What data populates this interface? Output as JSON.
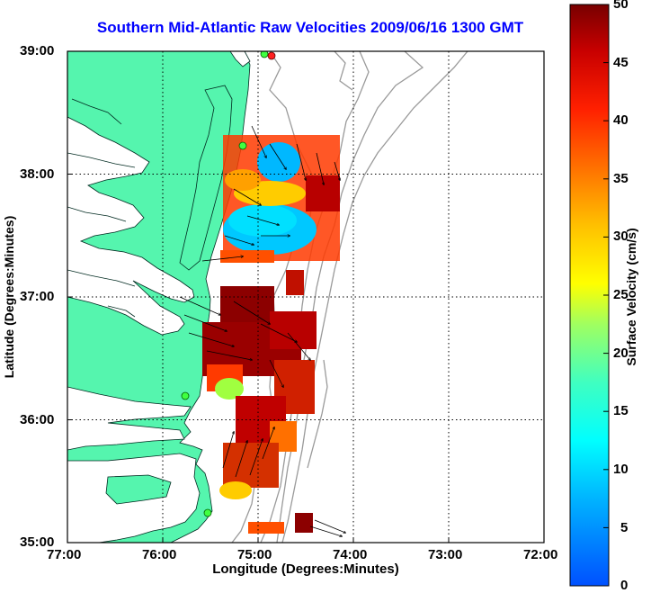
{
  "title": "Southern Mid-Atlantic Raw Velocities 2009/06/16 1300 GMT",
  "xlabel": "Longitude (Degrees:Minutes)",
  "ylabel": "Latitude (Degrees:Minutes)",
  "x_ticks": [
    "77:00",
    "76:00",
    "75:00",
    "74:00",
    "73:00",
    "72:00"
  ],
  "y_ticks": [
    "39:00",
    "38:00",
    "37:00",
    "36:00",
    "35:00"
  ],
  "colorbar": {
    "label": "Surface Velocity (cm/s)",
    "ticks": [
      "50",
      "45",
      "40",
      "35",
      "30",
      "25",
      "20",
      "15",
      "10",
      "5",
      "0"
    ]
  },
  "colors": {
    "land": "#55f5ae",
    "title": "#0000ff",
    "grid": "#000000",
    "bathymetry": "#9a9a9a"
  }
}
